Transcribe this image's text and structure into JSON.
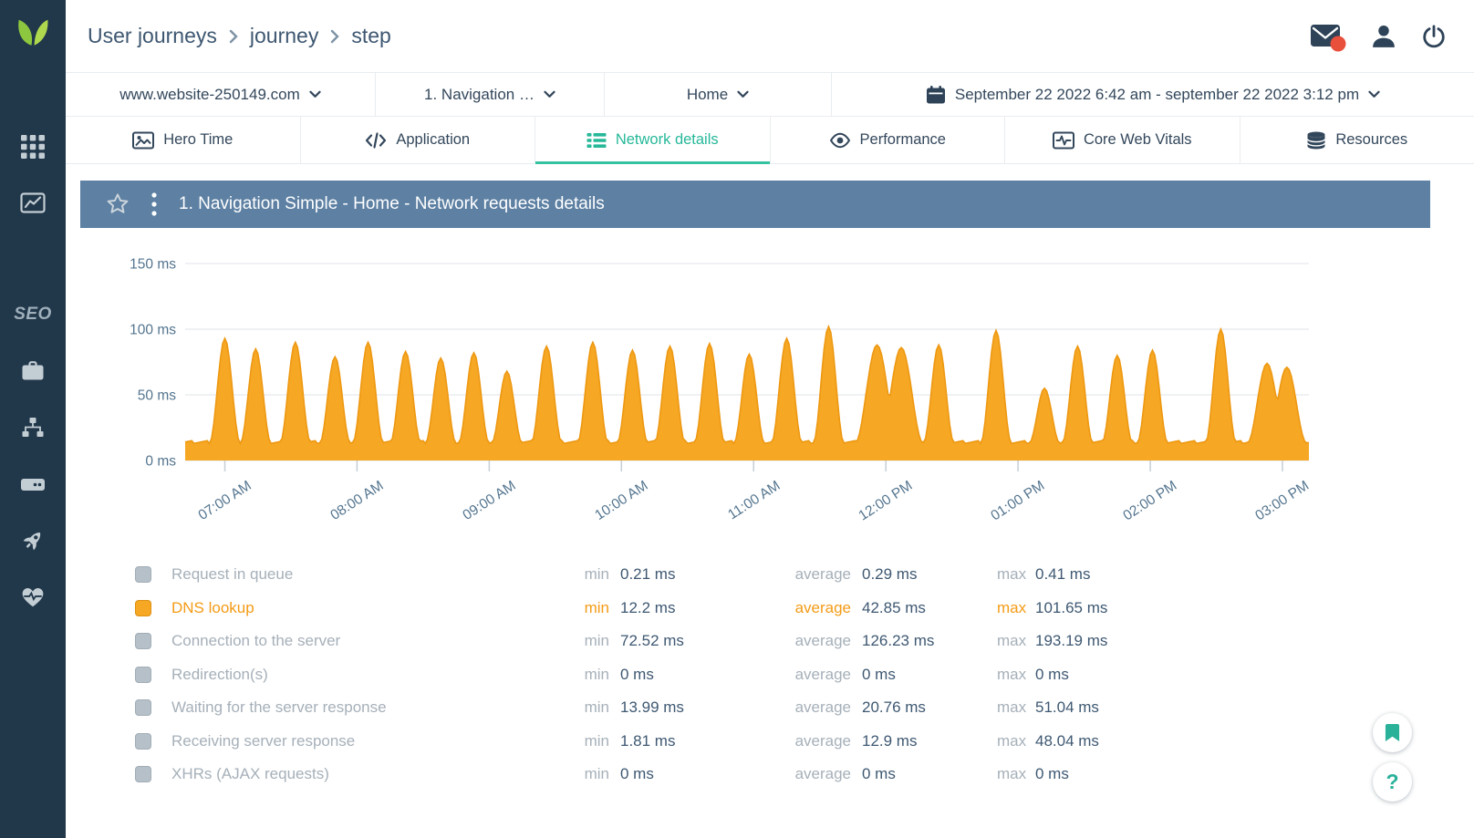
{
  "header": {
    "breadcrumb": [
      "User journeys",
      "journey",
      "step"
    ]
  },
  "filters": {
    "website": "www.website-250149.com",
    "journey": "1. Navigation …",
    "step": "Home",
    "date_range": "September 22 2022 6:42 am - september 22 2022 3:12 pm"
  },
  "tabs": [
    {
      "label": "Hero Time",
      "active": false
    },
    {
      "label": "Application",
      "active": false
    },
    {
      "label": "Network details",
      "active": true
    },
    {
      "label": "Performance",
      "active": false
    },
    {
      "label": "Core Web Vitals",
      "active": false
    },
    {
      "label": "Resources",
      "active": false
    }
  ],
  "sidebar": {
    "seo_label": "SEO"
  },
  "panel": {
    "title": "1. Navigation Simple - Home - Network requests details"
  },
  "stats": {
    "min_label": "min",
    "average_label": "average",
    "max_label": "max",
    "rows": [
      {
        "label": "Request in queue",
        "min": "0.21 ms",
        "average": "0.29 ms",
        "max": "0.41 ms",
        "active": false
      },
      {
        "label": "DNS lookup",
        "min": "12.2 ms",
        "average": "42.85 ms",
        "max": "101.65 ms",
        "active": true
      },
      {
        "label": "Connection to the server",
        "min": "72.52 ms",
        "average": "126.23 ms",
        "max": "193.19 ms",
        "active": false
      },
      {
        "label": "Redirection(s)",
        "min": "0 ms",
        "average": "0 ms",
        "max": "0 ms",
        "active": false
      },
      {
        "label": "Waiting for the server response",
        "min": "13.99 ms",
        "average": "20.76 ms",
        "max": "51.04 ms",
        "active": false
      },
      {
        "label": "Receiving server response",
        "min": "1.81 ms",
        "average": "12.9 ms",
        "max": "48.04 ms",
        "active": false
      },
      {
        "label": "XHRs (AJAX requests)",
        "min": "0 ms",
        "average": "0 ms",
        "max": "0 ms",
        "active": false
      }
    ]
  },
  "chart_data": {
    "type": "area",
    "series": [
      {
        "name": "DNS lookup",
        "color": "#f6a723",
        "stroke": "#ed9812"
      }
    ],
    "title": "1. Navigation Simple - Home - Network requests details",
    "ylabel": "ms",
    "ylim": [
      0,
      175
    ],
    "grid": true,
    "baseline_ms": 13,
    "t_range": [
      402,
      912
    ],
    "y_ticks": [
      {
        "v": 150,
        "label": "150 ms"
      },
      {
        "v": 100,
        "label": "100 ms"
      },
      {
        "v": 50,
        "label": "50 ms"
      },
      {
        "v": 0,
        "label": "0 ms"
      }
    ],
    "x_ticks": [
      {
        "t": 420,
        "label": "07:00 AM"
      },
      {
        "t": 480,
        "label": "08:00 AM"
      },
      {
        "t": 540,
        "label": "09:00 AM"
      },
      {
        "t": 600,
        "label": "10:00 AM"
      },
      {
        "t": 660,
        "label": "11:00 AM"
      },
      {
        "t": 720,
        "label": "12:00 PM"
      },
      {
        "t": 780,
        "label": "01:00 PM"
      },
      {
        "t": 840,
        "label": "02:00 PM"
      },
      {
        "t": 900,
        "label": "03:00 PM"
      }
    ],
    "peaks": [
      {
        "t": 420,
        "v": 93
      },
      {
        "t": 434,
        "v": 85
      },
      {
        "t": 452,
        "v": 90
      },
      {
        "t": 470,
        "v": 79
      },
      {
        "t": 485,
        "v": 90
      },
      {
        "t": 502,
        "v": 83
      },
      {
        "t": 518,
        "v": 78
      },
      {
        "t": 533,
        "v": 82
      },
      {
        "t": 548,
        "v": 68
      },
      {
        "t": 566,
        "v": 87
      },
      {
        "t": 587,
        "v": 90
      },
      {
        "t": 605,
        "v": 84
      },
      {
        "t": 622,
        "v": 87
      },
      {
        "t": 640,
        "v": 89
      },
      {
        "t": 658,
        "v": 81
      },
      {
        "t": 675,
        "v": 93
      },
      {
        "t": 694,
        "v": 102
      },
      {
        "t": 716,
        "v": 88,
        "w": 10
      },
      {
        "t": 727,
        "v": 86,
        "w": 10
      },
      {
        "t": 744,
        "v": 88
      },
      {
        "t": 770,
        "v": 99
      },
      {
        "t": 792,
        "v": 55
      },
      {
        "t": 807,
        "v": 87
      },
      {
        "t": 825,
        "v": 80
      },
      {
        "t": 841,
        "v": 84
      },
      {
        "t": 872,
        "v": 100
      },
      {
        "t": 893,
        "v": 74,
        "w": 9
      },
      {
        "t": 902,
        "v": 71,
        "w": 9
      }
    ]
  },
  "colors": {
    "accent_teal": "#26b899",
    "series_orange": "#f6a723",
    "panel_header_blue": "#5d80a3",
    "sidebar_bg": "#21374a",
    "alert_red": "#e8503b"
  }
}
